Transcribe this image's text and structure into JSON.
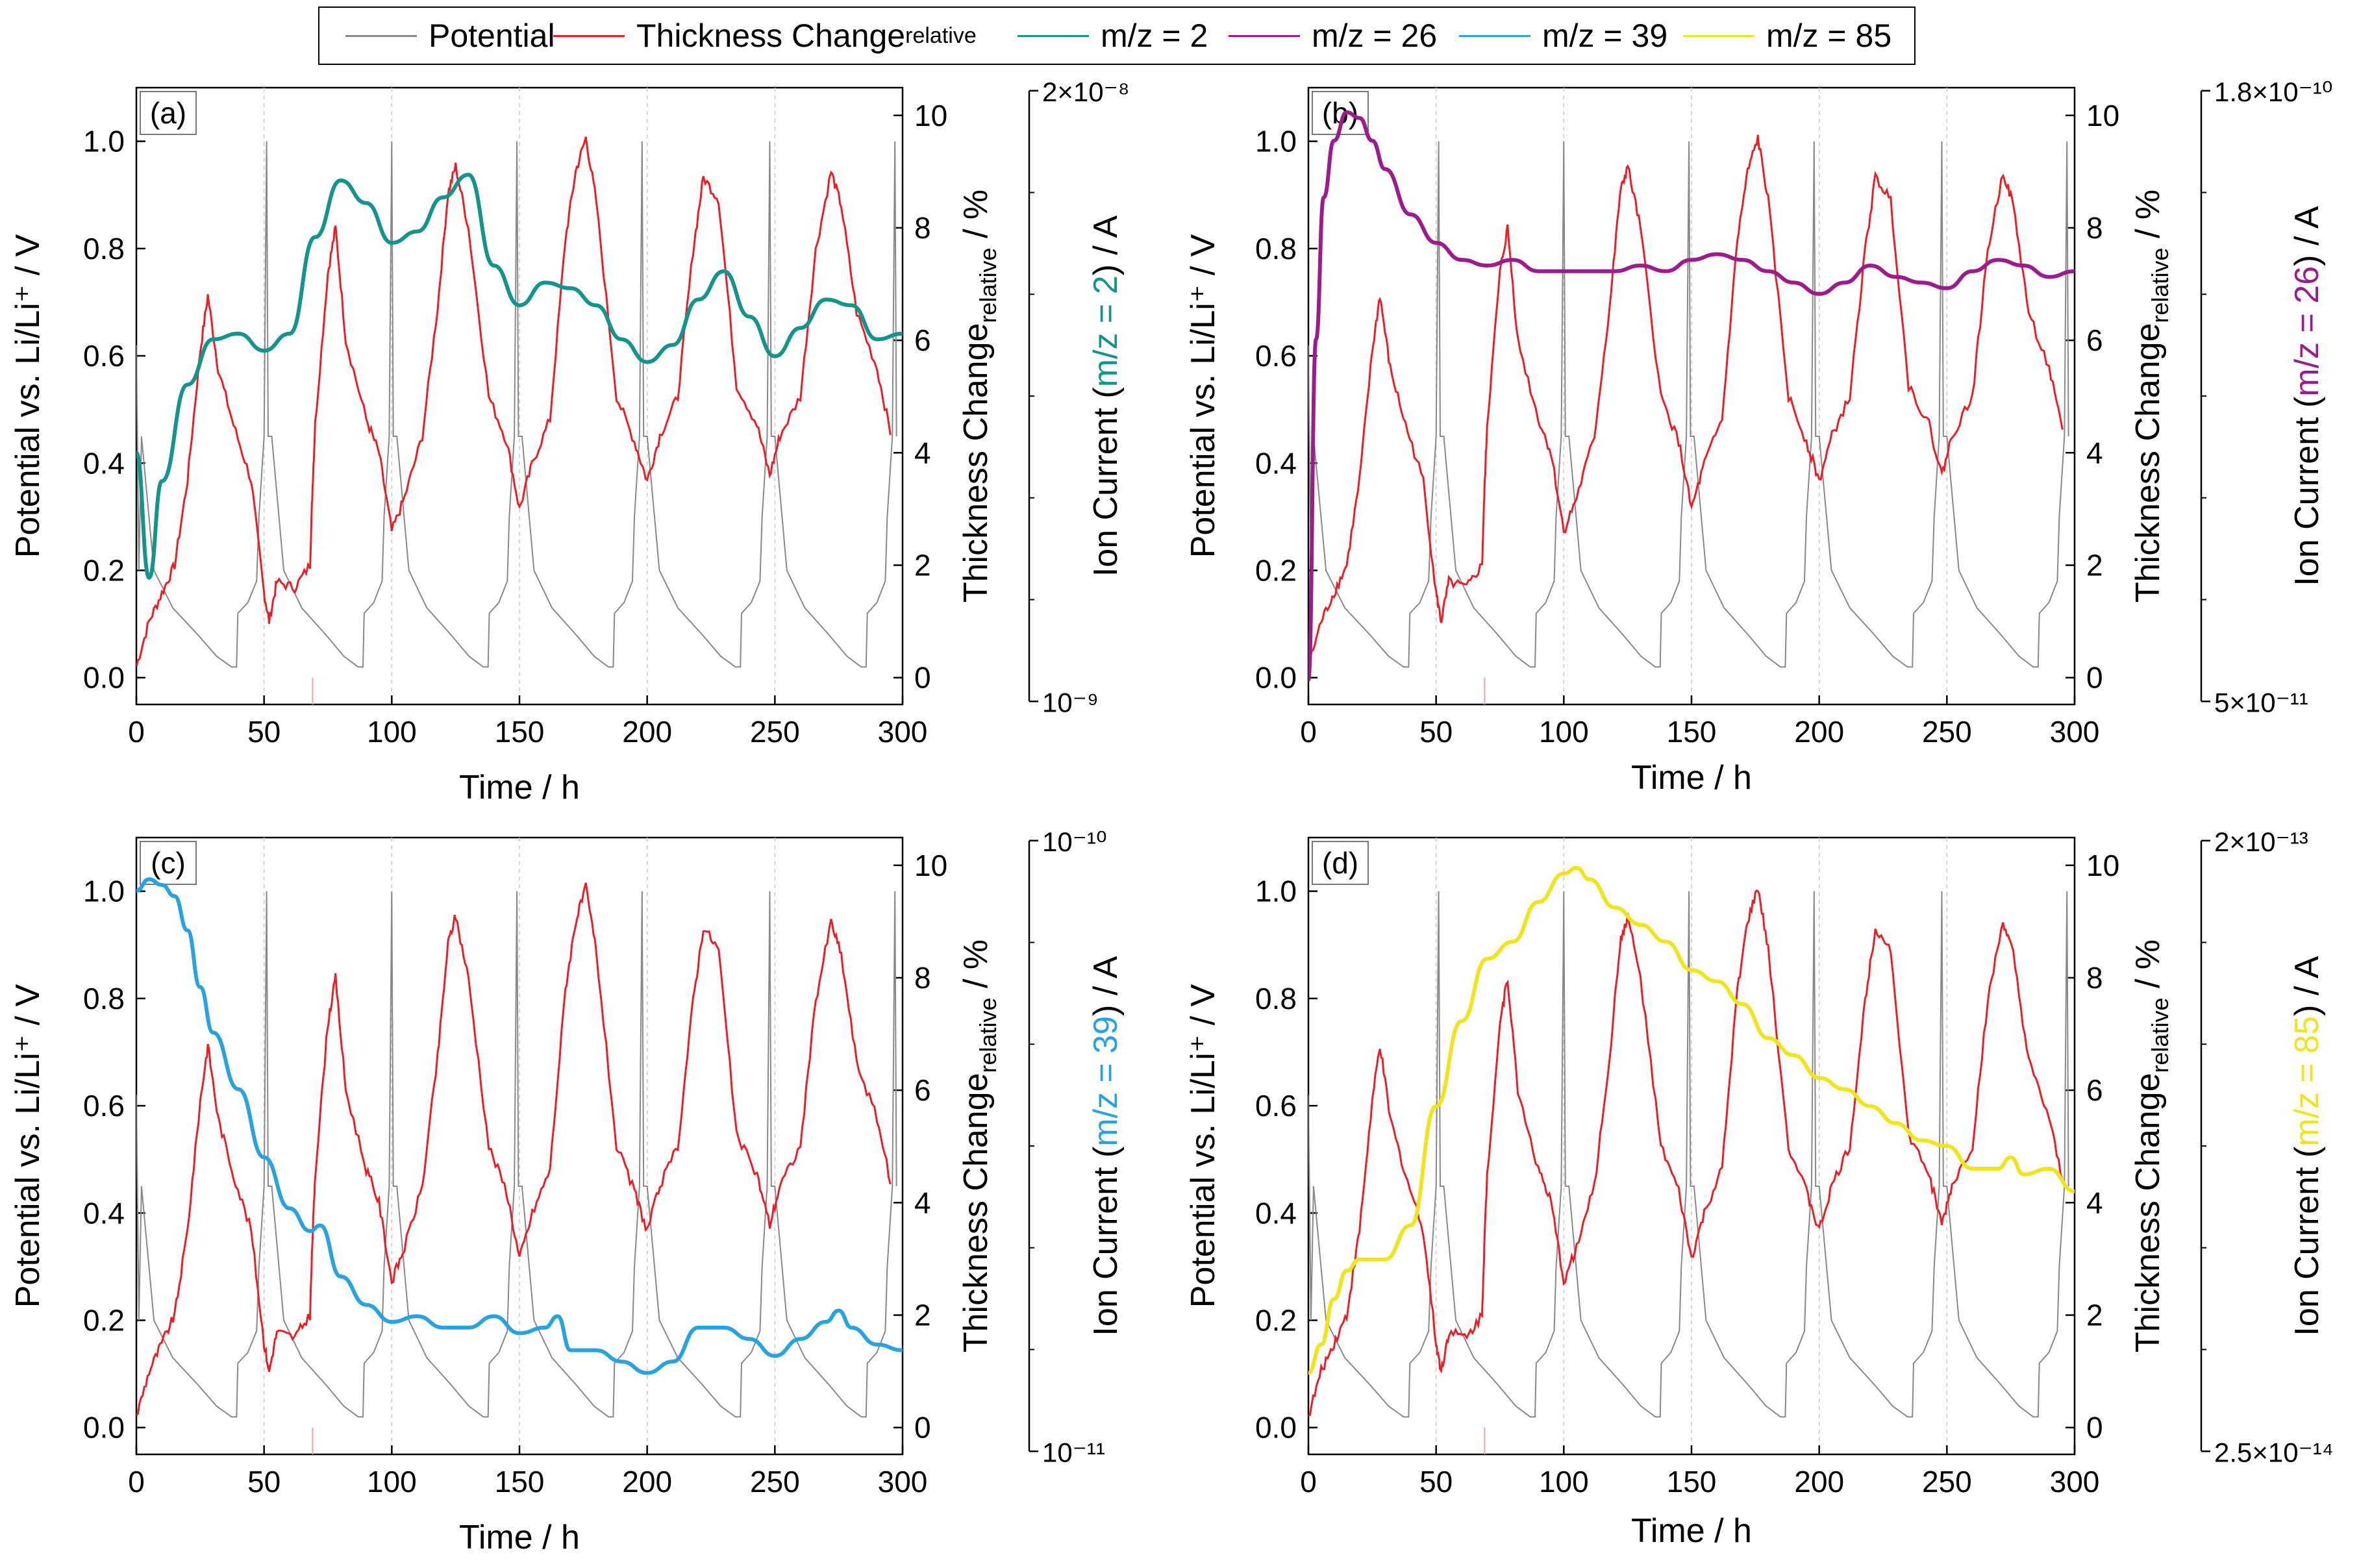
{
  "legend": [
    {
      "label": "Potential",
      "sub": "",
      "color": "#888888"
    },
    {
      "label": "Thickness Change",
      "sub": "relative",
      "color": "#ee1c24"
    },
    {
      "label": "m/z = 2",
      "sub": "",
      "color": "#14948c"
    },
    {
      "label": "m/z = 26",
      "sub": "",
      "color": "#9c1c8c"
    },
    {
      "label": "m/z = 39",
      "sub": "",
      "color": "#29a3e0"
    },
    {
      "label": "m/z = 85",
      "sub": "",
      "color": "#f0e41c"
    }
  ],
  "axes_text": {
    "xlabel": "Time  /  h",
    "ylabel_left": "Potential vs. Li/Li⁺  /  V",
    "ylabel_mid": "Thickness Change",
    "ylabel_mid_sub": "relative",
    "ylabel_mid_unit": "  /  %",
    "ylabel_right_prefix": "Ion Current (",
    "ylabel_right_suffix": ")  /  A"
  },
  "chart_data": [
    {
      "type": "line",
      "panel_label": "(a)",
      "xlim": [
        0,
        300
      ],
      "xticks": [
        "0",
        "50",
        "100",
        "150",
        "200",
        "250",
        "300"
      ],
      "ylim_left": [
        -0.05,
        1.1
      ],
      "yticks_left": [
        "0.0",
        "0.2",
        "0.4",
        "0.6",
        "0.8",
        "1.0"
      ],
      "ylim_mid": [
        0,
        10
      ],
      "yticks_mid": [
        "0",
        "2",
        "4",
        "6",
        "8",
        "10"
      ],
      "right_axis": {
        "label": "m/z = 2",
        "color": "#14948c",
        "ticks": [
          "2×10⁻⁸",
          "10⁻⁹"
        ]
      },
      "series": [
        {
          "name": "Potential",
          "axis": "left",
          "color": "#888888"
        },
        {
          "name": "Thickness Change relative",
          "axis": "mid",
          "color": "#ee1c24"
        },
        {
          "name": "m/z = 2",
          "axis": "right_normalized",
          "color": "#14948c",
          "x": [
            0,
            5,
            10,
            20,
            30,
            40,
            50,
            60,
            70,
            80,
            90,
            100,
            110,
            120,
            130,
            140,
            150,
            160,
            170,
            180,
            190,
            200,
            210,
            220,
            230,
            240,
            250,
            260,
            270,
            280,
            290,
            300
          ],
          "values": [
            0.4,
            0.18,
            0.35,
            0.52,
            0.6,
            0.61,
            0.58,
            0.61,
            0.78,
            0.88,
            0.84,
            0.77,
            0.79,
            0.85,
            0.89,
            0.73,
            0.66,
            0.7,
            0.69,
            0.66,
            0.6,
            0.56,
            0.59,
            0.67,
            0.72,
            0.64,
            0.57,
            0.62,
            0.67,
            0.66,
            0.6,
            0.61
          ]
        }
      ]
    },
    {
      "type": "line",
      "panel_label": "(b)",
      "xlim": [
        0,
        300
      ],
      "xticks": [
        "0",
        "50",
        "100",
        "150",
        "200",
        "250",
        "300"
      ],
      "ylim_left": [
        -0.05,
        1.1
      ],
      "yticks_left": [
        "0.0",
        "0.2",
        "0.4",
        "0.6",
        "0.8",
        "1.0"
      ],
      "ylim_mid": [
        0,
        10
      ],
      "yticks_mid": [
        "0",
        "2",
        "4",
        "6",
        "8",
        "10"
      ],
      "right_axis": {
        "label": "m/z = 26",
        "color": "#9c1c8c",
        "ticks": [
          "1.8×10⁻¹⁰",
          "5×10⁻¹¹"
        ]
      },
      "series": [
        {
          "name": "Potential",
          "axis": "left",
          "color": "#888888"
        },
        {
          "name": "Thickness Change relative",
          "axis": "mid",
          "color": "#ee1c24"
        },
        {
          "name": "m/z = 26",
          "axis": "right_normalized",
          "color": "#9c1c8c",
          "x": [
            0,
            3,
            6,
            10,
            15,
            20,
            25,
            30,
            40,
            50,
            60,
            70,
            80,
            90,
            100,
            110,
            120,
            130,
            140,
            150,
            160,
            170,
            180,
            190,
            200,
            210,
            220,
            230,
            240,
            250,
            260,
            270,
            280,
            290,
            300
          ],
          "values": [
            0.0,
            0.6,
            0.85,
            0.95,
            1.0,
            0.99,
            0.95,
            0.9,
            0.82,
            0.77,
            0.74,
            0.73,
            0.74,
            0.72,
            0.72,
            0.72,
            0.72,
            0.73,
            0.72,
            0.74,
            0.75,
            0.74,
            0.72,
            0.7,
            0.68,
            0.7,
            0.73,
            0.71,
            0.7,
            0.69,
            0.72,
            0.74,
            0.73,
            0.71,
            0.72
          ]
        }
      ]
    },
    {
      "type": "line",
      "panel_label": "(c)",
      "xlim": [
        0,
        300
      ],
      "xticks": [
        "0",
        "50",
        "100",
        "150",
        "200",
        "250",
        "300"
      ],
      "ylim_left": [
        -0.05,
        1.1
      ],
      "yticks_left": [
        "0.0",
        "0.2",
        "0.4",
        "0.6",
        "0.8",
        "1.0"
      ],
      "ylim_mid": [
        0,
        10
      ],
      "yticks_mid": [
        "0",
        "2",
        "4",
        "6",
        "8",
        "10"
      ],
      "right_axis": {
        "label": "m/z = 39",
        "color": "#29a3e0",
        "ticks": [
          "10⁻¹⁰",
          "10⁻¹¹"
        ]
      },
      "series": [
        {
          "name": "Potential",
          "axis": "left",
          "color": "#888888"
        },
        {
          "name": "Thickness Change relative",
          "axis": "mid",
          "color": "#ee1c24"
        },
        {
          "name": "m/z = 39",
          "axis": "right_normalized",
          "color": "#29a3e0",
          "x": [
            0,
            5,
            10,
            15,
            20,
            25,
            30,
            40,
            50,
            60,
            68,
            72,
            80,
            90,
            100,
            110,
            120,
            130,
            140,
            150,
            160,
            165,
            170,
            180,
            190,
            200,
            210,
            220,
            230,
            240,
            250,
            260,
            270,
            275,
            280,
            290,
            300
          ],
          "values": [
            0.95,
            0.97,
            0.96,
            0.94,
            0.88,
            0.78,
            0.7,
            0.6,
            0.48,
            0.39,
            0.35,
            0.36,
            0.27,
            0.22,
            0.19,
            0.2,
            0.18,
            0.18,
            0.2,
            0.17,
            0.18,
            0.2,
            0.14,
            0.14,
            0.12,
            0.1,
            0.12,
            0.18,
            0.18,
            0.16,
            0.13,
            0.16,
            0.19,
            0.21,
            0.18,
            0.15,
            0.14
          ]
        }
      ]
    },
    {
      "type": "line",
      "panel_label": "(d)",
      "xlim": [
        0,
        300
      ],
      "xticks": [
        "0",
        "50",
        "100",
        "150",
        "200",
        "250",
        "300"
      ],
      "ylim_left": [
        -0.05,
        1.1
      ],
      "yticks_left": [
        "0.0",
        "0.2",
        "0.4",
        "0.6",
        "0.8",
        "1.0"
      ],
      "ylim_mid": [
        0,
        10
      ],
      "yticks_mid": [
        "0",
        "2",
        "4",
        "6",
        "8",
        "10"
      ],
      "right_axis": {
        "label": "m/z = 85",
        "color": "#f0e41c",
        "ticks": [
          "2×10⁻¹³",
          "2.5×10⁻¹⁴"
        ]
      },
      "series": [
        {
          "name": "Potential",
          "axis": "left",
          "color": "#888888"
        },
        {
          "name": "Thickness Change relative",
          "axis": "mid",
          "color": "#ee1c24"
        },
        {
          "name": "m/z = 85",
          "axis": "right_normalized",
          "color": "#f0e41c",
          "x": [
            0,
            5,
            10,
            15,
            20,
            30,
            40,
            50,
            60,
            70,
            80,
            90,
            100,
            105,
            110,
            120,
            130,
            140,
            150,
            160,
            170,
            180,
            190,
            200,
            210,
            220,
            230,
            240,
            250,
            260,
            270,
            275,
            280,
            290,
            300
          ],
          "values": [
            0.1,
            0.15,
            0.23,
            0.28,
            0.3,
            0.3,
            0.36,
            0.57,
            0.72,
            0.83,
            0.86,
            0.93,
            0.98,
            0.99,
            0.97,
            0.92,
            0.89,
            0.86,
            0.81,
            0.79,
            0.75,
            0.69,
            0.66,
            0.62,
            0.6,
            0.57,
            0.54,
            0.51,
            0.5,
            0.46,
            0.46,
            0.48,
            0.45,
            0.46,
            0.42
          ]
        }
      ]
    }
  ]
}
